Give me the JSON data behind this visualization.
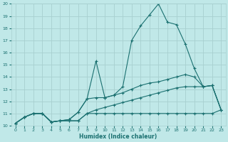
{
  "xlabel": "Humidex (Indice chaleur)",
  "bg_color": "#c0e8e8",
  "grid_color": "#a8d0d0",
  "line_color": "#1a7070",
  "xlim": [
    -0.5,
    23.5
  ],
  "ylim": [
    10,
    20
  ],
  "lines": [
    {
      "x": [
        0,
        1,
        2,
        3,
        4,
        5,
        6,
        7,
        8,
        9,
        10,
        11,
        12,
        13,
        14,
        15,
        16,
        17,
        18,
        19,
        20,
        21,
        22,
        23
      ],
      "y": [
        10.2,
        10.7,
        11.0,
        11.0,
        10.3,
        10.4,
        10.5,
        11.1,
        12.2,
        15.3,
        12.3,
        12.5,
        13.2,
        17.0,
        18.2,
        19.1,
        20.0,
        18.5,
        18.3,
        16.7,
        14.7,
        13.2,
        13.3,
        11.3
      ]
    },
    {
      "x": [
        0,
        1,
        2,
        3,
        4,
        5,
        6,
        7,
        8,
        9,
        10,
        11,
        12,
        13,
        14,
        15,
        16,
        17,
        18,
        19,
        20,
        21,
        22,
        23
      ],
      "y": [
        10.2,
        10.7,
        11.0,
        11.0,
        10.3,
        10.4,
        10.5,
        11.1,
        12.2,
        12.3,
        12.3,
        12.5,
        12.7,
        13.0,
        13.3,
        13.5,
        13.6,
        13.8,
        14.0,
        14.2,
        14.0,
        13.2,
        13.3,
        11.3
      ]
    },
    {
      "x": [
        0,
        1,
        2,
        3,
        4,
        5,
        6,
        7,
        8,
        9,
        10,
        11,
        12,
        13,
        14,
        15,
        16,
        17,
        18,
        19,
        20,
        21,
        22,
        23
      ],
      "y": [
        10.2,
        10.7,
        11.0,
        11.0,
        10.3,
        10.4,
        10.4,
        10.4,
        11.0,
        11.0,
        11.0,
        11.0,
        11.0,
        11.0,
        11.0,
        11.0,
        11.0,
        11.0,
        11.0,
        11.0,
        11.0,
        11.0,
        11.0,
        11.3
      ]
    },
    {
      "x": [
        0,
        1,
        2,
        3,
        4,
        5,
        6,
        7,
        8,
        9,
        10,
        11,
        12,
        13,
        14,
        15,
        16,
        17,
        18,
        19,
        20,
        21,
        22,
        23
      ],
      "y": [
        10.2,
        10.7,
        11.0,
        11.0,
        10.3,
        10.4,
        10.4,
        10.4,
        11.0,
        11.3,
        11.5,
        11.7,
        11.9,
        12.1,
        12.3,
        12.5,
        12.7,
        12.9,
        13.1,
        13.2,
        13.2,
        13.2,
        13.3,
        11.3
      ]
    }
  ],
  "yticks": [
    10,
    11,
    12,
    13,
    14,
    15,
    16,
    17,
    18,
    19,
    20
  ],
  "xticks": [
    0,
    1,
    2,
    3,
    4,
    5,
    6,
    7,
    8,
    9,
    10,
    11,
    12,
    13,
    14,
    15,
    16,
    17,
    18,
    19,
    20,
    21,
    22,
    23
  ]
}
